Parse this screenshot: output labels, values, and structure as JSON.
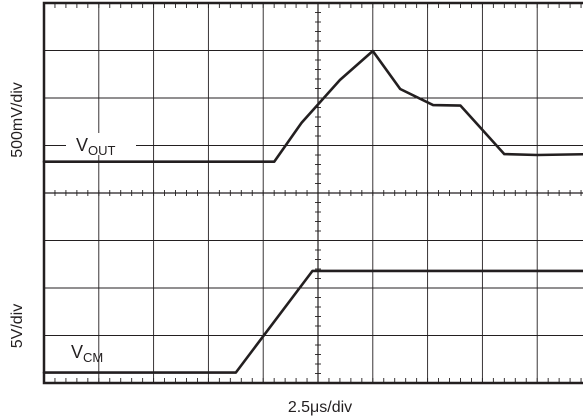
{
  "chart_data": [
    {
      "type": "line",
      "panel": "top",
      "ylabel": "500mV/div",
      "trace_label": {
        "main": "V",
        "sub": "OUT"
      },
      "grid": true,
      "x_divisions": 10,
      "y_divisions": 4,
      "xlim": [
        0,
        10
      ],
      "ylim": [
        0,
        4
      ],
      "x": [
        0.0,
        4.2,
        4.7,
        5.4,
        6.0,
        6.5,
        7.1,
        7.6,
        8.4,
        9.0,
        10.0
      ],
      "y": [
        0.66,
        0.66,
        1.48,
        2.38,
        2.99,
        2.19,
        1.85,
        1.84,
        0.82,
        0.8,
        0.82
      ]
    },
    {
      "type": "line",
      "panel": "bottom",
      "ylabel": "5V/div",
      "trace_label": {
        "main": "V",
        "sub": "CM"
      },
      "grid": true,
      "x_divisions": 10,
      "y_divisions": 4,
      "xlim": [
        0,
        10
      ],
      "ylim": [
        0,
        4
      ],
      "x": [
        0.0,
        3.5,
        4.9,
        10.0
      ],
      "y": [
        0.22,
        0.22,
        2.36,
        2.36
      ]
    }
  ],
  "xlabel": "2.5μs/div"
}
